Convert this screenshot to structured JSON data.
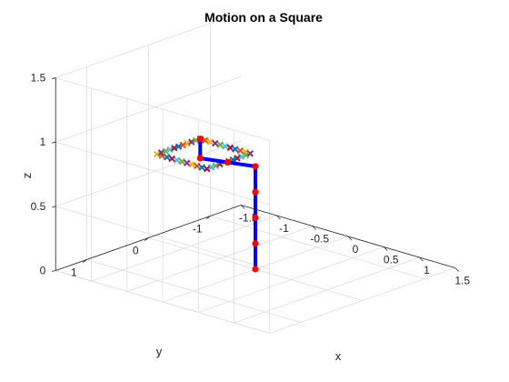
{
  "chart_data": {
    "type": "line3d",
    "title": "Motion on a Square",
    "xlabel": "x",
    "ylabel": "y",
    "zlabel": "z",
    "xlim": [
      -1.5,
      1.5
    ],
    "ylim": [
      -1.5,
      1.5
    ],
    "zlim": [
      0,
      1.5
    ],
    "x_ticks": [
      "-1.5",
      "-1",
      "-0.5",
      "0",
      "0.5",
      "1",
      "1.5"
    ],
    "y_ticks": [
      "-1",
      "0",
      "1"
    ],
    "z_ticks": [
      "0",
      "0.5",
      "1",
      "1.5"
    ],
    "grid": true,
    "arm": {
      "color": "#0000ff",
      "joint_color": "#ff0000",
      "joints": [
        {
          "x": 0,
          "y": 0,
          "z": 0
        },
        {
          "x": 0,
          "y": 0,
          "z": 0.2
        },
        {
          "x": 0,
          "y": 0,
          "z": 0.4
        },
        {
          "x": 0,
          "y": 0,
          "z": 0.6
        },
        {
          "x": 0,
          "y": 0,
          "z": 0.8
        },
        {
          "x": -0.3,
          "y": 0.1,
          "z": 0.8
        },
        {
          "x": -0.6,
          "y": 0.2,
          "z": 0.8
        },
        {
          "x": -0.6,
          "y": 0.2,
          "z": 0.95
        }
      ]
    },
    "trajectory": {
      "marker": "x",
      "colors": [
        "#0072bd",
        "#d95319",
        "#edb120",
        "#7e2f8e",
        "#77ac30",
        "#4dbeee",
        "#a2142f"
      ],
      "corners": [
        {
          "x": -0.6,
          "y": 0.2,
          "z": 0.95
        },
        {
          "x": 0.1,
          "y": 0.2,
          "z": 0.95
        },
        {
          "x": 0.1,
          "y": 0.9,
          "z": 0.95
        },
        {
          "x": -0.6,
          "y": 0.9,
          "z": 0.95
        }
      ],
      "points_per_side": 10
    }
  }
}
